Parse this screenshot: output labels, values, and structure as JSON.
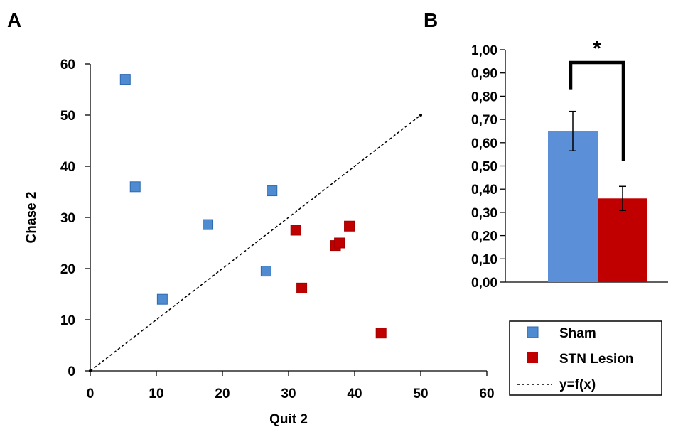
{
  "panels": {
    "a": "A",
    "b": "B"
  },
  "chart_data": [
    {
      "type": "scatter",
      "xlabel": "Quit 2",
      "ylabel": "Chase 2",
      "xlim": [
        0,
        60
      ],
      "ylim": [
        0,
        60
      ],
      "xticks": [
        "0",
        "10",
        "20",
        "30",
        "40",
        "50",
        "60"
      ],
      "yticks": [
        "0",
        "10",
        "20",
        "30",
        "40",
        "50",
        "60"
      ],
      "series": [
        {
          "name": "Sham",
          "color": "#4f8bd0",
          "marker": "square",
          "points": [
            [
              5.3,
              57
            ],
            [
              6.8,
              36
            ],
            [
              10.9,
              14
            ],
            [
              17.8,
              28.6
            ],
            [
              26.6,
              19.5
            ],
            [
              27.5,
              35.2
            ]
          ]
        },
        {
          "name": "STN Lesion",
          "color": "#c00000",
          "marker": "square",
          "points": [
            [
              31.1,
              27.5
            ],
            [
              32,
              16.2
            ],
            [
              37.1,
              24.5
            ],
            [
              37.7,
              25
            ],
            [
              39.2,
              28.3
            ],
            [
              44,
              7.4
            ]
          ]
        },
        {
          "name": "y=f(x)",
          "color": "#000000",
          "style": "dashed",
          "points": [
            [
              0,
              0
            ],
            [
              50,
              50
            ]
          ]
        }
      ],
      "legend": "bottom-right"
    },
    {
      "type": "bar",
      "ylim": [
        0,
        1
      ],
      "yticks": [
        "0,00",
        "0,10",
        "0,20",
        "0,30",
        "0,40",
        "0,50",
        "0,60",
        "0,70",
        "0,80",
        "0,90",
        "1,00"
      ],
      "categories": [
        "Sham",
        "STN Lesion"
      ],
      "values": [
        0.65,
        0.36
      ],
      "errors": [
        0.085,
        0.052
      ],
      "colors": [
        "#5b8fd8",
        "#c00000"
      ],
      "significance": "*"
    }
  ]
}
